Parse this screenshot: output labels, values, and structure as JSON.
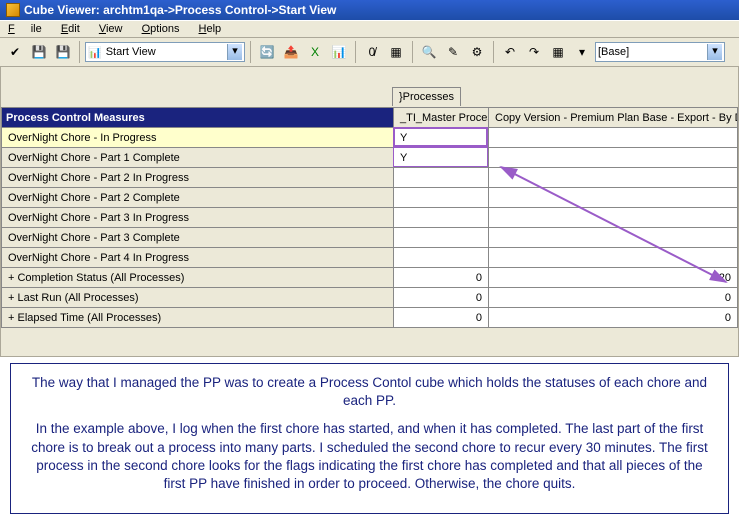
{
  "title": "Cube Viewer: archtm1qa->Process Control->Start View",
  "menu": {
    "file": "File",
    "edit": "Edit",
    "view": "View",
    "options": "Options",
    "help": "Help"
  },
  "toolbar": {
    "view_combo": "Start View",
    "base_combo": "[Base]"
  },
  "proc_tab": "}Processes",
  "columns": {
    "measures": "Process Control Measures",
    "ti": "_TI_Master Process",
    "copy": "Copy Version - Premium Plan Base - Export - By Division"
  },
  "rows": [
    {
      "label": "OverNight Chore - In Progress",
      "ti": "Y",
      "copy": "",
      "hl": true
    },
    {
      "label": "OverNight Chore - Part 1 Complete",
      "ti": "Y",
      "copy": "",
      "hl": false
    },
    {
      "label": "OverNight Chore - Part 2 In Progress",
      "ti": "",
      "copy": "",
      "hl": false
    },
    {
      "label": "OverNight Chore - Part 2 Complete",
      "ti": "",
      "copy": "",
      "hl": false
    },
    {
      "label": "OverNight Chore - Part 3 In Progress",
      "ti": "",
      "copy": "",
      "hl": false
    },
    {
      "label": "OverNight Chore - Part 3 Complete",
      "ti": "",
      "copy": "",
      "hl": false
    },
    {
      "label": "OverNight Chore - Part 4 In Progress",
      "ti": "",
      "copy": "",
      "hl": false
    },
    {
      "label": "+ Completion Status (All Processes)",
      "ti": "0",
      "copy": "20",
      "hl": false
    },
    {
      "label": "+ Last Run (All Processes)",
      "ti": "0",
      "copy": "0",
      "hl": false
    },
    {
      "label": "+ Elapsed Time (All Processes)",
      "ti": "0",
      "copy": "0",
      "hl": false
    }
  ],
  "caption": {
    "p1": "The way that I managed the PP was to create a Process Contol cube which holds the statuses of each chore and each PP.",
    "p2": "In the example above, I log when the first chore has started, and when it has completed.  The last part of the first chore is to break out a process into many parts.  I scheduled the second chore to recur every 30 minutes.  The first process in the second chore looks for the flags indicating the first chore has completed and that all pieces of the first PP have finished in order to proceed.  Otherwise, the chore quits."
  },
  "arrow_color": "#9a5cc8"
}
